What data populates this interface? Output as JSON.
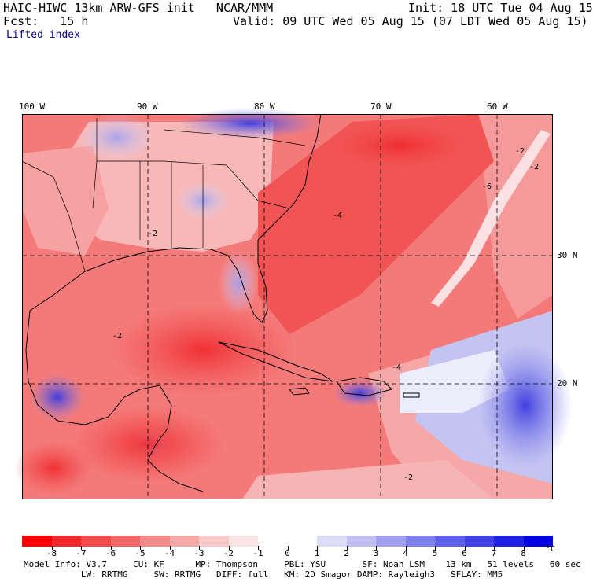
{
  "header": {
    "line1_left": "HAIC-HIWC 13km ARW-GFS init   NCAR/MMM",
    "line1_right": "Init: 18 UTC Tue 04 Aug 15",
    "line2_left": "Fcst:   15 h",
    "line2_right": "Valid: 09 UTC Wed 05 Aug 15 (07 LDT Wed 05 Aug 15)",
    "field_name": "Lifted index"
  },
  "map": {
    "longitude_labels": [
      "100 W",
      "90 W",
      "80 W",
      "70 W",
      "60 W"
    ],
    "latitude_labels": [
      "30 N",
      "20 N"
    ],
    "contour_labels": [
      "-2",
      "-4",
      "-6",
      "-2",
      "-2",
      "-4",
      "-2",
      "-2"
    ]
  },
  "colorbar": {
    "tick_labels": [
      "-8",
      "-7",
      "-6",
      "-5",
      "-4",
      "-3",
      "-2",
      "-1",
      "0",
      "1",
      "2",
      "3",
      "4",
      "5",
      "6",
      "7",
      "8"
    ],
    "unit": "°C",
    "colors": [
      "#ff0000",
      "#f0282c",
      "#f24a4a",
      "#f26868",
      "#f28a8a",
      "#f5a8a8",
      "#f9c8c8",
      "#fce3e3",
      "#ffffff",
      "#ffffff",
      "#dcdcf8",
      "#c0c0f2",
      "#a0a0ee",
      "#8080ea",
      "#6060e8",
      "#4040e4",
      "#2020e0",
      "#0000e0"
    ]
  },
  "footer": {
    "line1": "Model Info: V3.7     CU: KF      MP: Thompson     PBL: YSU       SF: Noah LSM    13 km   51 levels   60 sec",
    "line2": "           LW: RRTMG     SW: RRTMG   DIFF: full   KM: 2D Smagor DAMP: Rayleigh3   SFLAY: MM5"
  }
}
